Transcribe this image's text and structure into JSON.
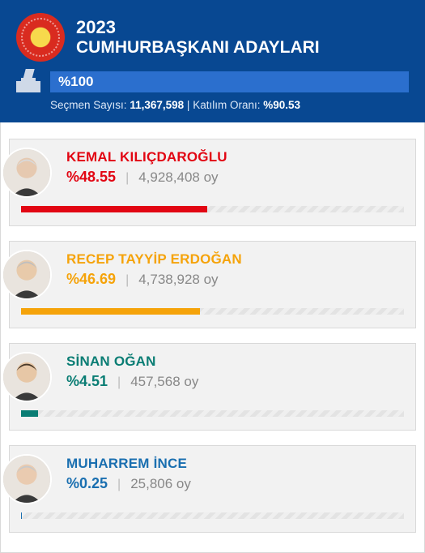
{
  "header": {
    "year": "2023",
    "subtitle": "CUMHURBAŞKANI ADAYLARI",
    "count_percent_label": "%100",
    "voters_label": "Seçmen Sayısı:",
    "voters_value": "11,367,598",
    "separator": "|",
    "turnout_label": "Katılım Oranı:",
    "turnout_value": "%90.53",
    "bg_color": "#084892",
    "count_bar_color": "#2b6fce"
  },
  "candidates": [
    {
      "name": "KEMAL KILIÇDAROĞLU",
      "pct_label": "%48.55",
      "votes_label": "4,928,408 oy",
      "color": "#e20613",
      "fill_pct": 48.55,
      "avatar_skin": "#e6c9b0",
      "avatar_hair": "#d9d9d9"
    },
    {
      "name": "RECEP TAYYİP ERDOĞAN",
      "pct_label": "%46.69",
      "votes_label": "4,738,928 oy",
      "color": "#f5a30a",
      "fill_pct": 46.69,
      "avatar_skin": "#e8caaa",
      "avatar_hair": "#bfbfbf"
    },
    {
      "name": "SİNAN OĞAN",
      "pct_label": "%4.51",
      "votes_label": "457,568 oy",
      "color": "#0a7d74",
      "fill_pct": 4.51,
      "avatar_skin": "#e7c7a6",
      "avatar_hair": "#4a3a2a"
    },
    {
      "name": "MUHARREM İNCE",
      "pct_label": "%0.25",
      "votes_label": "25,806 oy",
      "color": "#1a6fb0",
      "fill_pct": 0.25,
      "avatar_skin": "#eacbb0",
      "avatar_hair": "#c9c9c9"
    }
  ]
}
